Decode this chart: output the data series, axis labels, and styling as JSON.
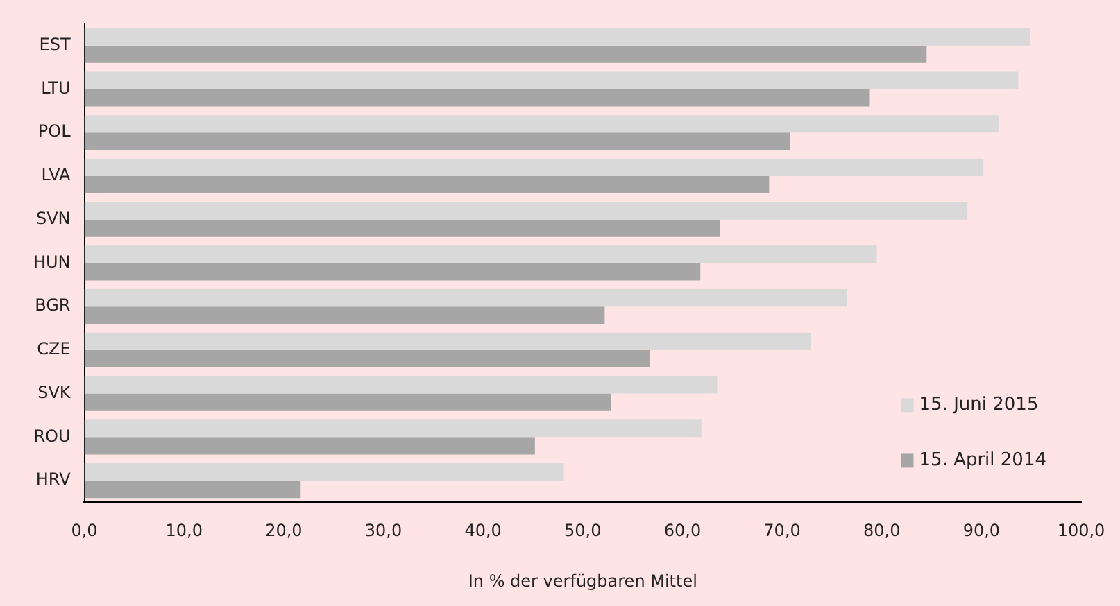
{
  "chart_data": {
    "type": "bar",
    "orientation": "horizontal",
    "xlabel": "In % der verfügbaren Mittel",
    "categories": [
      "EST",
      "LTU",
      "POL",
      "LVA",
      "SVN",
      "HUN",
      "BGR",
      "CZE",
      "SVK",
      "ROU",
      "HRV"
    ],
    "series": [
      {
        "name": "15. Juni 2015",
        "color": "#d9d9d9",
        "values": [
          94.9,
          93.7,
          91.7,
          90.2,
          88.6,
          79.5,
          76.5,
          72.9,
          63.5,
          61.9,
          48.1
        ]
      },
      {
        "name": "15. April 2014",
        "color": "#a6a6a6",
        "values": [
          84.5,
          78.8,
          70.8,
          68.7,
          63.8,
          61.8,
          52.2,
          56.7,
          52.8,
          45.2,
          21.7
        ]
      }
    ],
    "xlim": [
      0,
      100
    ],
    "xticks": [
      {
        "value": 0,
        "label": "0,0"
      },
      {
        "value": 10,
        "label": "10,0"
      },
      {
        "value": 20,
        "label": "20,0"
      },
      {
        "value": 30,
        "label": "30,0"
      },
      {
        "value": 40,
        "label": "40,0"
      },
      {
        "value": 50,
        "label": "50,0"
      },
      {
        "value": 60,
        "label": "60,0"
      },
      {
        "value": 70,
        "label": "70,0"
      },
      {
        "value": 80,
        "label": "80,0"
      },
      {
        "value": 90,
        "label": "90,0"
      },
      {
        "value": 100,
        "label": "100,0"
      }
    ],
    "grid": false,
    "legend": "bottom right"
  }
}
